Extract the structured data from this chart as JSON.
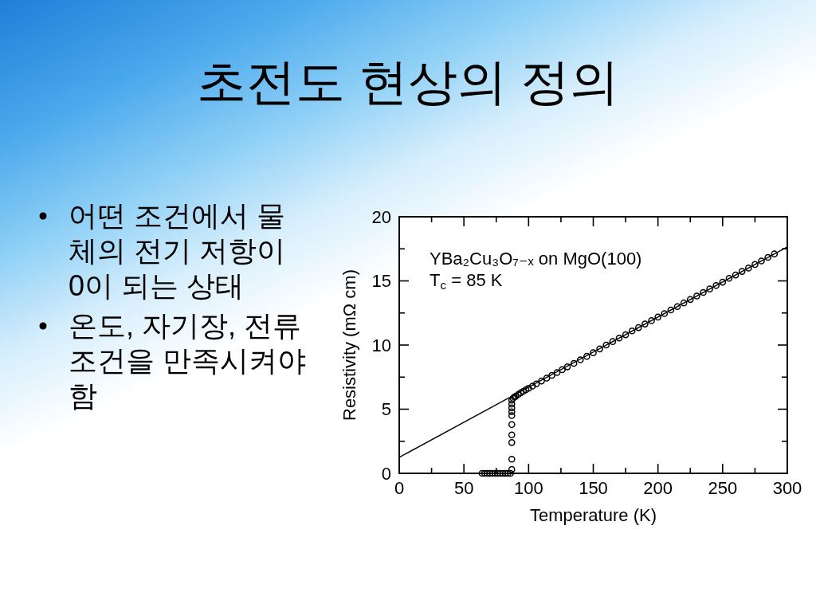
{
  "chart_data": {
    "type": "scatter",
    "title": "초전도 현상의 정의",
    "xlabel": "Temperature (K)",
    "ylabel": "Resistivity (mΩ cm)",
    "annotations": [
      "어떤 조건에서 물체의 전기 저항이 0이 되는 상태",
      "온도, 자기장, 전류 조건을 만족시켜야 함",
      "YBa₂Cu₃O₇₋ₓ on MgO(100)",
      "T$_{c}$ = 85 K"
    ],
    "xlim": [
      0,
      300
    ],
    "ylim": [
      0,
      20
    ],
    "xticks": [
      0,
      {
        "value": 25,
        "label": null
      },
      50,
      {
        "value": 75,
        "label": null
      },
      100,
      {
        "value": 125,
        "label": null
      },
      150,
      {
        "value": 175,
        "label": null
      },
      200,
      {
        "value": 225,
        "label": null
      },
      250,
      {
        "value": 275,
        "label": null
      },
      300
    ],
    "yticks": [
      0,
      {
        "value": 2.5,
        "label": null
      },
      5,
      {
        "value": 7.5,
        "label": null
      },
      10,
      {
        "value": 12.5,
        "label": null
      },
      15,
      {
        "value": 17.5,
        "label": null
      },
      20
    ],
    "grid": false,
    "series": [
      {
        "type": "scatter",
        "color": "#000000",
        "marker": "circle",
        "x": [
          64,
          66,
          68,
          70,
          72,
          74,
          76,
          78,
          80,
          82,
          84,
          86,
          87,
          87,
          87,
          87,
          87,
          87,
          87,
          87,
          87,
          87,
          88,
          89,
          90,
          92,
          94,
          96,
          98,
          100,
          103,
          106,
          110,
          114,
          118,
          122,
          126,
          130,
          135,
          140,
          145,
          150,
          155,
          160,
          165,
          170,
          175,
          180,
          185,
          190,
          195,
          200,
          205,
          210,
          215,
          220,
          225,
          230,
          235,
          240,
          245,
          250,
          255,
          260,
          265,
          270,
          275,
          280,
          285,
          290
        ],
        "values": [
          0,
          0,
          0,
          0,
          0,
          0,
          0,
          0,
          0,
          0,
          0,
          0,
          0.3,
          1.1,
          2.4,
          3.0,
          3.8,
          4.5,
          4.8,
          5.1,
          5.4,
          5.7,
          5.85,
          5.95,
          6.0,
          6.15,
          6.28,
          6.4,
          6.52,
          6.63,
          6.8,
          6.97,
          7.2,
          7.42,
          7.64,
          7.86,
          8.08,
          8.3,
          8.57,
          8.85,
          9.12,
          9.4,
          9.7,
          10.0,
          10.27,
          10.54,
          10.8,
          11.1,
          11.36,
          11.64,
          11.9,
          12.18,
          12.45,
          12.73,
          13.0,
          13.28,
          13.55,
          13.82,
          14.1,
          14.37,
          14.64,
          14.9,
          15.2,
          15.46,
          15.74,
          16.0,
          16.28,
          16.55,
          16.83,
          17.1
        ]
      },
      {
        "type": "line",
        "color": "#000000",
        "line_style": "solid",
        "x": [
          0,
          300
        ],
        "values": [
          1.25,
          17.65
        ]
      }
    ]
  }
}
